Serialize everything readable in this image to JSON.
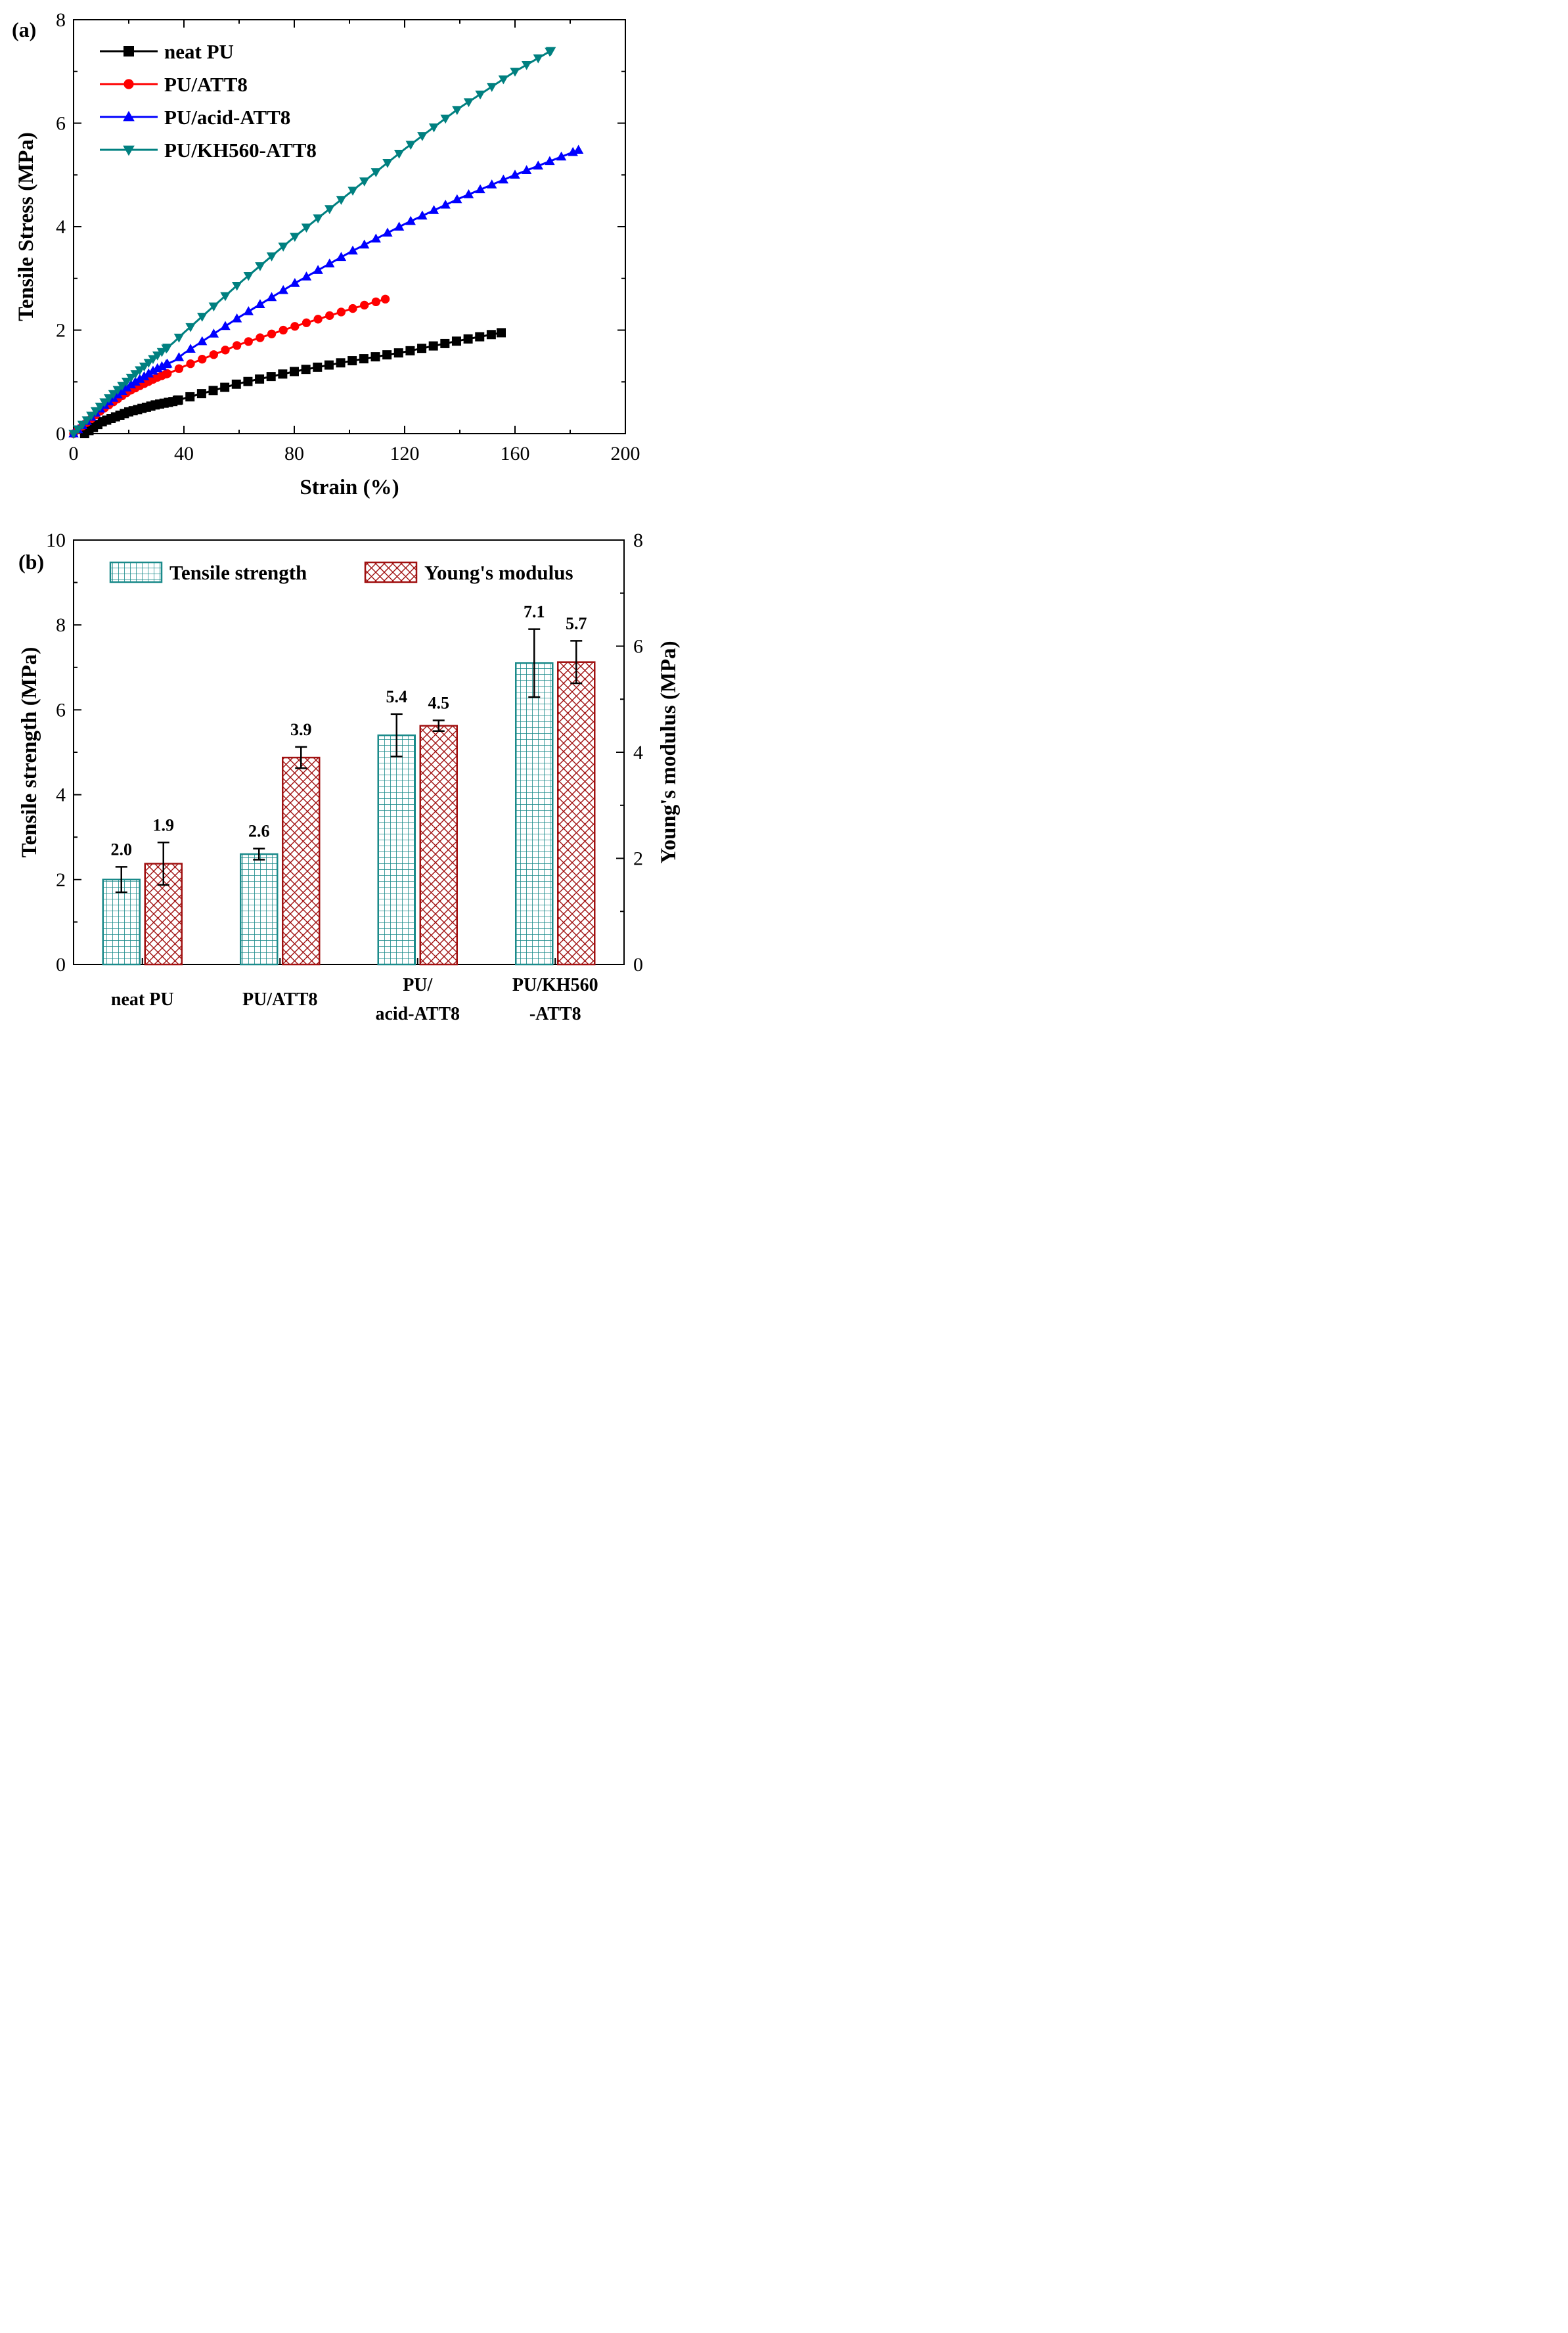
{
  "chart_data": [
    {
      "panel": "(a)",
      "type": "line",
      "xlabel": "Strain (%)",
      "ylabel": "Tensile Stress (MPa)",
      "xlim": [
        0,
        200
      ],
      "ylim": [
        0,
        8
      ],
      "xticks": [
        0,
        40,
        80,
        120,
        160,
        200
      ],
      "yticks": [
        0,
        2,
        4,
        6,
        8
      ],
      "legend_position": "top-left",
      "series": [
        {
          "name": "neat PU",
          "color": "#000000",
          "marker": "square",
          "x": [
            4,
            10,
            20,
            30,
            36,
            40,
            60,
            80,
            100,
            120,
            140,
            150,
            155
          ],
          "y": [
            0,
            0.22,
            0.42,
            0.56,
            0.62,
            0.68,
            0.97,
            1.2,
            1.4,
            1.58,
            1.8,
            1.9,
            1.95
          ]
        },
        {
          "name": "PU/ATT8",
          "color": "#ff0000",
          "marker": "circle",
          "x": [
            0,
            10,
            20,
            30,
            36,
            40,
            60,
            80,
            100,
            113
          ],
          "y": [
            0,
            0.45,
            0.82,
            1.08,
            1.2,
            1.3,
            1.72,
            2.07,
            2.4,
            2.6
          ]
        },
        {
          "name": "PU/acid-ATT8",
          "color": "#0000ff",
          "marker": "triangle-up",
          "x": [
            0,
            10,
            20,
            30,
            37,
            40,
            60,
            80,
            100,
            120,
            140,
            160,
            183
          ],
          "y": [
            0,
            0.5,
            0.92,
            1.25,
            1.42,
            1.55,
            2.25,
            2.9,
            3.5,
            4.05,
            4.55,
            5.0,
            5.48
          ]
        },
        {
          "name": "PU/KH560-ATT8",
          "color": "#008080",
          "marker": "triangle-down",
          "x": [
            0,
            10,
            20,
            30,
            36,
            40,
            60,
            80,
            100,
            120,
            140,
            160,
            173
          ],
          "y": [
            0,
            0.55,
            1.05,
            1.5,
            1.75,
            1.95,
            2.9,
            3.8,
            4.65,
            5.5,
            6.3,
            7.0,
            7.4
          ]
        }
      ]
    },
    {
      "panel": "(b)",
      "type": "bar",
      "categories": [
        "neat PU",
        "PU/ATT8",
        "PU/\nacid-ATT8",
        "PU/KH560\n-ATT8"
      ],
      "ylabel": "Tensile strength (MPa)",
      "ylabel_right": "Young's modulus (MPa)",
      "ylim": [
        0,
        10
      ],
      "ylim_right": [
        0,
        8
      ],
      "yticks": [
        0,
        2,
        4,
        6,
        8,
        10
      ],
      "yticks_right": [
        0,
        2,
        4,
        6,
        8
      ],
      "legend_position": "top",
      "series": [
        {
          "name": "Tensile strength",
          "axis": "left",
          "color": "#1a8a8a",
          "pattern": "grid",
          "values": [
            2.0,
            2.6,
            5.4,
            7.1
          ],
          "errors": [
            0.3,
            0.13,
            0.5,
            0.8
          ],
          "labels": [
            "2.0",
            "2.6",
            "5.4",
            "7.1"
          ]
        },
        {
          "name": "Young's modulus",
          "axis": "right",
          "color": "#a01010",
          "pattern": "crosshatch",
          "values": [
            1.9,
            3.9,
            4.5,
            5.7
          ],
          "errors": [
            0.4,
            0.2,
            0.1,
            0.4
          ],
          "labels": [
            "1.9",
            "3.9",
            "4.5",
            "5.7"
          ]
        }
      ]
    }
  ]
}
